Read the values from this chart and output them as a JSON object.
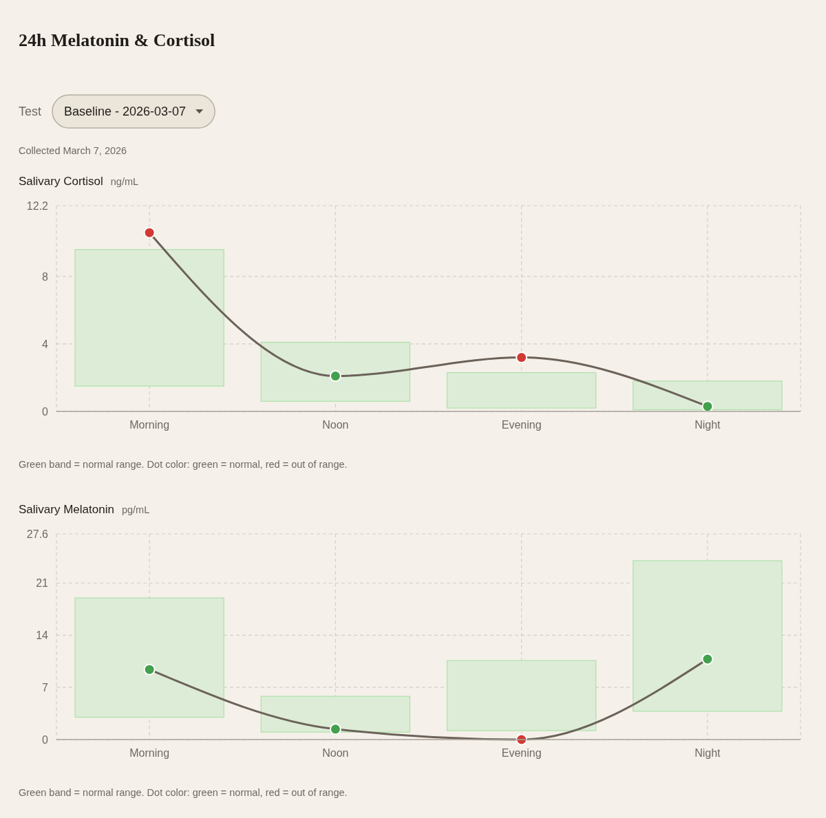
{
  "chart_data": [
    {
      "type": "other",
      "title": "24h Melatonin & Cortisol",
      "annotations": [
        "Test",
        "Baseline - 2026-03-07",
        "Collected March 7, 2026"
      ]
    },
    {
      "type": "bar",
      "title": "Salivary Cortisol",
      "subtitle": "ng/mL",
      "categories": [
        "Morning",
        "Noon",
        "Evening",
        "Night"
      ],
      "series": [
        {
          "type": "bar",
          "color": "#ddecd7",
          "base": [
            1.5,
            0.6,
            0.2,
            0.1
          ],
          "values": [
            8.1,
            3.5,
            2.1,
            1.7
          ]
        },
        {
          "type": "line",
          "color": "#6b6259",
          "values": [
            10.6,
            2.1,
            3.2,
            0.3
          ],
          "colors": [
            "#d13a32",
            "#43a04c",
            "#d13a32",
            "#43a04c"
          ]
        }
      ],
      "ylim": [
        0,
        12.2
      ],
      "yticks": [
        0,
        4,
        8,
        12.2
      ],
      "grid": true,
      "marker": "circle",
      "annotations": [
        "Green band = normal range. Dot color: green = normal, red = out of range."
      ]
    },
    {
      "type": "bar",
      "title": "Salivary Melatonin",
      "subtitle": "pg/mL",
      "categories": [
        "Morning",
        "Noon",
        "Evening",
        "Night"
      ],
      "series": [
        {
          "type": "bar",
          "color": "#ddecd7",
          "base": [
            3.0,
            1.0,
            1.2,
            3.8
          ],
          "values": [
            16.0,
            4.8,
            9.4,
            20.2
          ]
        },
        {
          "type": "line",
          "color": "#6b6259",
          "values": [
            9.4,
            1.4,
            0,
            10.8
          ],
          "colors": [
            "#43a04c",
            "#43a04c",
            "#d13a32",
            "#43a04c"
          ]
        }
      ],
      "ylim": [
        0,
        27.6
      ],
      "yticks": [
        0,
        7,
        14,
        21,
        27.6
      ],
      "grid": true,
      "marker": "circle",
      "annotations": [
        "Green band = normal range. Dot color: green = normal, red = out of range."
      ]
    }
  ]
}
